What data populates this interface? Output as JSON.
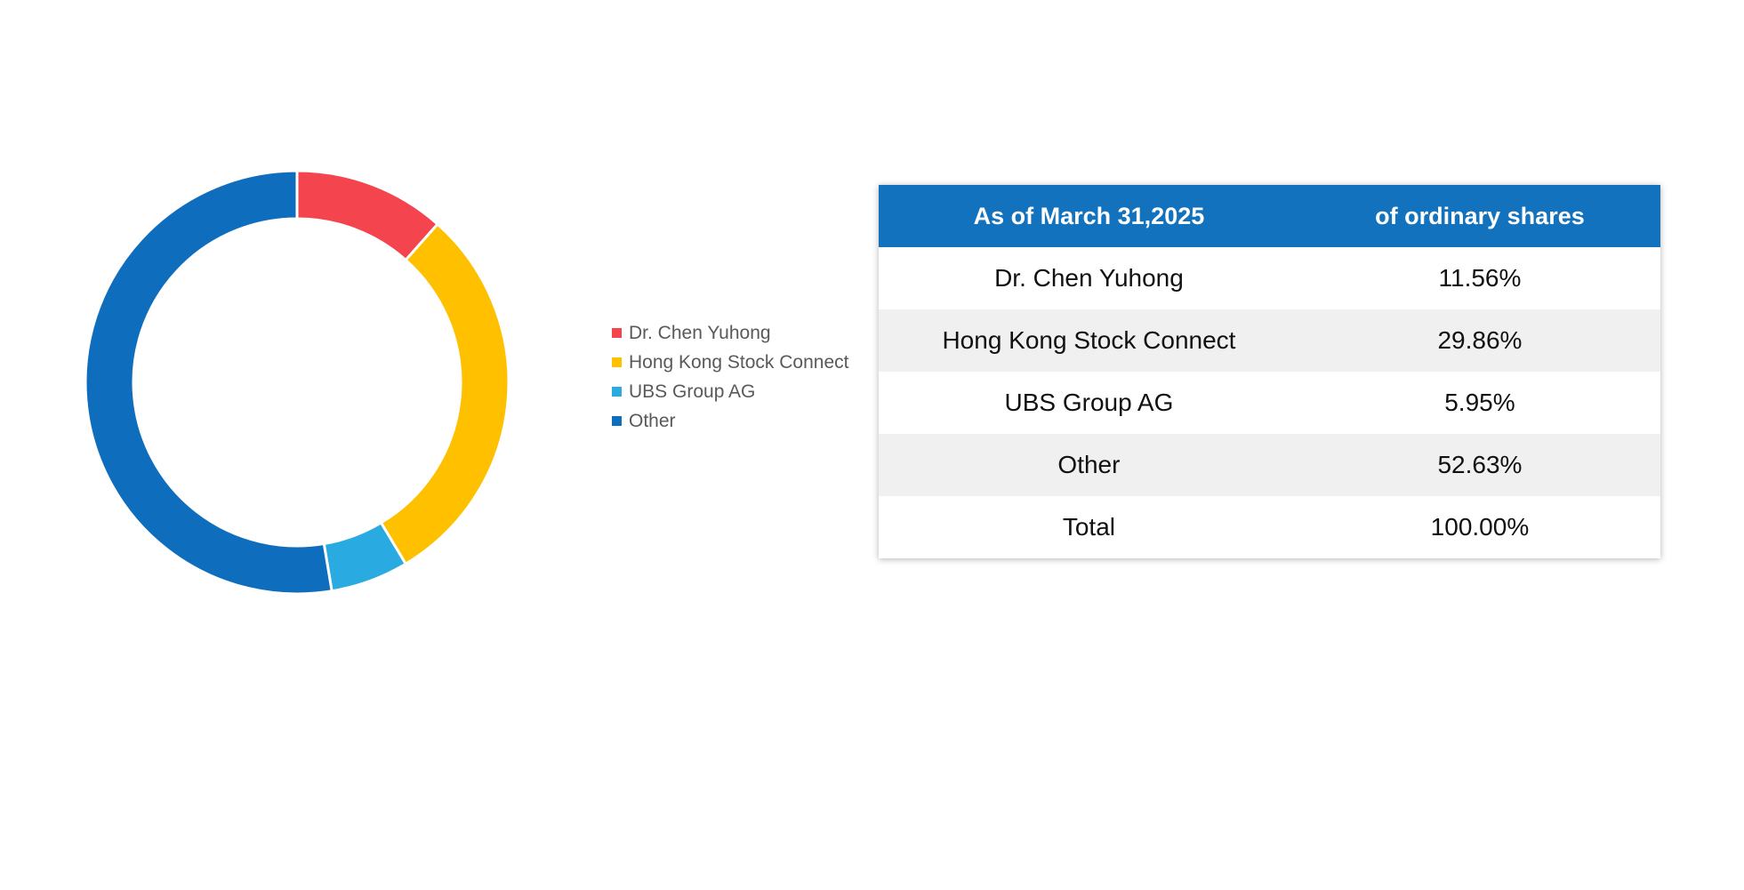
{
  "chart_data": {
    "type": "pie",
    "subtype": "donut",
    "title": "",
    "categories": [
      "Dr. Chen Yuhong",
      "Hong Kong Stock Connect",
      "UBS Group AG",
      "Other"
    ],
    "values": [
      11.56,
      29.86,
      5.95,
      52.63
    ],
    "unit": "%",
    "colors": [
      "#F4444E",
      "#FFC000",
      "#29ABE2",
      "#0E6EBD"
    ],
    "start_angle_deg": 0,
    "direction": "clockwise",
    "legend_position": "right",
    "legend_text_color": "#595959",
    "slice_gap_color": "#FFFFFF"
  },
  "table": {
    "header_bg": "#1272BD",
    "header_text_color": "#FFFFFF",
    "stripe_bg": "#F0F0F0",
    "headers": [
      "As of March 31,2025",
      "of ordinary shares"
    ],
    "rows": [
      {
        "name": "Dr. Chen Yuhong",
        "value": "11.56%"
      },
      {
        "name": "Hong Kong Stock Connect",
        "value": "29.86%"
      },
      {
        "name": "UBS Group AG",
        "value": "5.95%"
      },
      {
        "name": "Other",
        "value": "52.63%"
      },
      {
        "name": "Total",
        "value": "100.00%"
      }
    ]
  }
}
